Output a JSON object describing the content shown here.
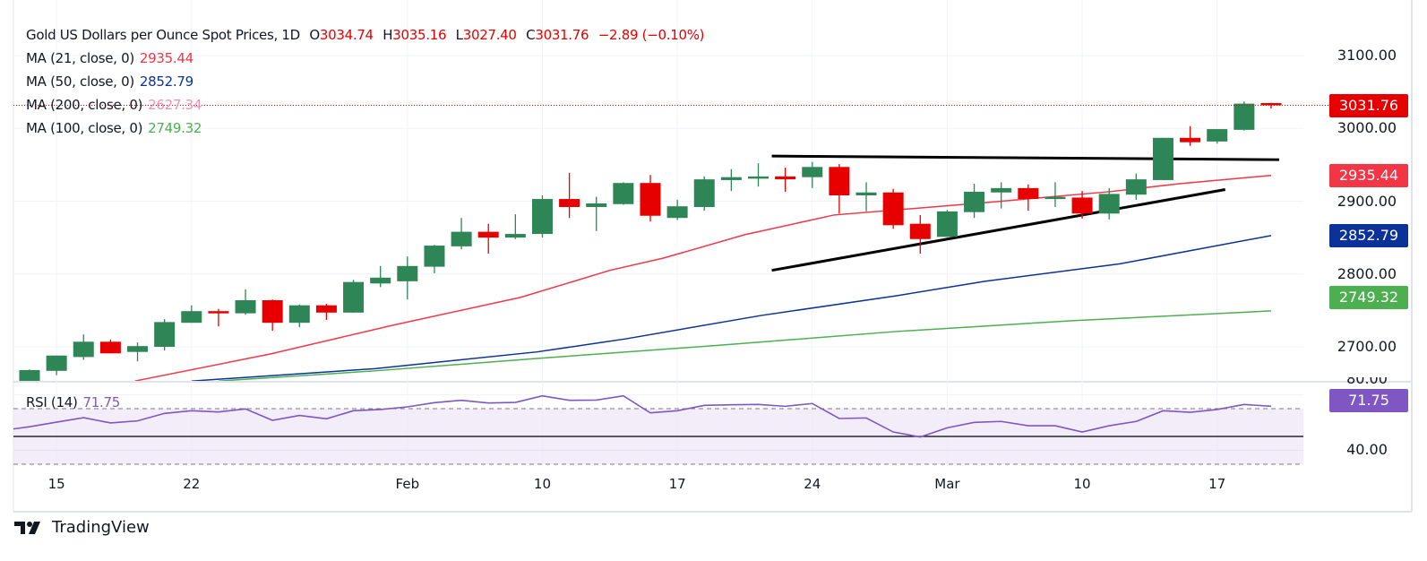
{
  "header": {
    "title": "Gold US Dollars per Ounce Spot Prices, 1D",
    "o_label": "O",
    "o_value": "3034.74",
    "h_label": "H",
    "h_value": "3035.16",
    "l_label": "L",
    "l_value": "3027.40",
    "c_label": "C",
    "c_value": "3031.76",
    "change": "−2.89 (−0.10%)"
  },
  "indicators": [
    {
      "label": "MA (21, close, 0)",
      "value": "2935.44",
      "color": "#f23645"
    },
    {
      "label": "MA (50, close, 0)",
      "value": "2852.79",
      "color": "#0c3299"
    },
    {
      "label": "MA (200, close, 0)",
      "value": "2627.34",
      "color": "#f48fb1"
    },
    {
      "label": "MA (100, close, 0)",
      "value": "2749.32",
      "color": "#4caf50"
    }
  ],
  "rsi": {
    "label": "RSI (14)",
    "value": "71.75",
    "color": "#7e57c2",
    "axis_labels": [
      "80.00",
      "40.00"
    ]
  },
  "badges": {
    "close": "3031.76",
    "ma21": "2935.44",
    "ma50": "2852.79",
    "ma100": "2749.32"
  },
  "colors": {
    "up": "#2e8656",
    "down": "#e60000",
    "ma21": "#f23645",
    "ma50": "#0c3299",
    "ma100": "#4caf50",
    "rsi": "#7e57c2"
  },
  "brand": "TradingView",
  "chart_data": {
    "type": "candlestick",
    "title": "Gold US Dollars per Ounce Spot Prices, 1D",
    "price_axis": {
      "ticks": [
        "3100.00",
        "3000.00",
        "2900.00",
        "2800.00",
        "2700.00"
      ],
      "tick_values": [
        3100,
        3000,
        2900,
        2800,
        2700
      ],
      "range": [
        2653,
        3145
      ]
    },
    "x_ticks": [
      {
        "label": "15",
        "index": 1
      },
      {
        "label": "22",
        "index": 6
      },
      {
        "label": "Feb",
        "index": 14
      },
      {
        "label": "10",
        "index": 19
      },
      {
        "label": "17",
        "index": 24
      },
      {
        "label": "24",
        "index": 29
      },
      {
        "label": "Mar",
        "index": 34
      },
      {
        "label": "10",
        "index": 39
      },
      {
        "label": "17",
        "index": 44
      }
    ],
    "ohlc": [
      [
        2652,
        2669,
        2651,
        2668
      ],
      [
        2667,
        2688,
        2661,
        2688
      ],
      [
        2686,
        2717,
        2682,
        2707
      ],
      [
        2707,
        2710,
        2691,
        2691
      ],
      [
        2693,
        2706,
        2680,
        2701
      ],
      [
        2700,
        2738,
        2695,
        2734
      ],
      [
        2733,
        2757,
        2733,
        2749
      ],
      [
        2749,
        2752,
        2728,
        2746
      ],
      [
        2746,
        2779,
        2744,
        2764
      ],
      [
        2764,
        2765,
        2722,
        2733
      ],
      [
        2733,
        2758,
        2727,
        2757
      ],
      [
        2757,
        2759,
        2737,
        2747
      ],
      [
        2747,
        2792,
        2747,
        2789
      ],
      [
        2787,
        2811,
        2782,
        2795
      ],
      [
        2790,
        2824,
        2765,
        2811
      ],
      [
        2810,
        2840,
        2801,
        2839
      ],
      [
        2838,
        2877,
        2834,
        2858
      ],
      [
        2858,
        2869,
        2828,
        2850
      ],
      [
        2850,
        2882,
        2848,
        2855
      ],
      [
        2855,
        2908,
        2850,
        2903
      ],
      [
        2903,
        2939,
        2877,
        2892
      ],
      [
        2892,
        2906,
        2859,
        2897
      ],
      [
        2896,
        2926,
        2895,
        2925
      ],
      [
        2925,
        2936,
        2872,
        2880
      ],
      [
        2877,
        2902,
        2874,
        2893
      ],
      [
        2892,
        2934,
        2887,
        2930
      ],
      [
        2929,
        2944,
        2914,
        2933
      ],
      [
        2931,
        2952,
        2920,
        2934
      ],
      [
        2934,
        2946,
        2913,
        2930
      ],
      [
        2933,
        2954,
        2918,
        2947
      ],
      [
        2947,
        2951,
        2883,
        2908
      ],
      [
        2908,
        2926,
        2886,
        2912
      ],
      [
        2912,
        2917,
        2862,
        2867
      ],
      [
        2869,
        2881,
        2828,
        2848
      ],
      [
        2851,
        2888,
        2851,
        2886
      ],
      [
        2885,
        2924,
        2877,
        2913
      ],
      [
        2912,
        2926,
        2890,
        2918
      ],
      [
        2918,
        2923,
        2887,
        2903
      ],
      [
        2904,
        2926,
        2892,
        2906
      ],
      [
        2905,
        2914,
        2876,
        2883
      ],
      [
        2883,
        2918,
        2875,
        2910
      ],
      [
        2909,
        2938,
        2902,
        2930
      ],
      [
        2929,
        2987,
        2929,
        2987
      ],
      [
        2987,
        3003,
        2976,
        2981
      ],
      [
        2982,
        2999,
        2979,
        2999
      ],
      [
        2998,
        3037,
        2997,
        3034
      ],
      [
        3034.74,
        3035.16,
        3027.4,
        3031.76
      ]
    ],
    "moving_averages": [
      {
        "name": "MA21",
        "points": [
          [
            3.9,
            2653
          ],
          [
            8.9,
            2690
          ],
          [
            13.5,
            2730
          ],
          [
            18.2,
            2768
          ],
          [
            21.5,
            2805
          ],
          [
            23.5,
            2822
          ],
          [
            26.5,
            2854
          ],
          [
            29.8,
            2881
          ],
          [
            35.4,
            2898
          ],
          [
            40,
            2913
          ],
          [
            42.6,
            2924
          ],
          [
            46,
            2935.44
          ]
        ]
      },
      {
        "name": "MA50",
        "points": [
          [
            6,
            2653
          ],
          [
            12.8,
            2670
          ],
          [
            18.8,
            2693
          ],
          [
            22.1,
            2711
          ],
          [
            27.1,
            2743
          ],
          [
            32.1,
            2770
          ],
          [
            35.4,
            2790
          ],
          [
            40.4,
            2814
          ],
          [
            46,
            2852.79
          ]
        ]
      },
      {
        "name": "MA100",
        "points": [
          [
            7,
            2653
          ],
          [
            12.8,
            2667
          ],
          [
            18.8,
            2684
          ],
          [
            25.5,
            2702
          ],
          [
            32.1,
            2721
          ],
          [
            38.7,
            2736
          ],
          [
            46,
            2749.32
          ]
        ]
      }
    ],
    "trendlines": [
      {
        "name": "upper",
        "from": [
          27.5,
          2962
        ],
        "to": [
          46.3,
          2957
        ]
      },
      {
        "name": "lower",
        "from": [
          27.5,
          2805
        ],
        "to": [
          44.3,
          2916
        ]
      }
    ],
    "rsi_values": [
      57,
      60.3,
      63.5,
      59.7,
      61.2,
      66.6,
      68.5,
      67.6,
      69.8,
      61.6,
      65.1,
      62.7,
      68.5,
      69.4,
      71.3,
      74.3,
      76,
      74.1,
      74.5,
      79.2,
      76,
      76.2,
      79.2,
      67,
      68.5,
      72.4,
      72.8,
      73,
      71.7,
      73.7,
      62.9,
      63.3,
      53.2,
      49.6,
      56.2,
      60.1,
      60.8,
      57.7,
      57.7,
      53.2,
      57.7,
      60.8,
      68.5,
      67.4,
      69.4,
      73,
      71.75
    ],
    "rsi_levels": [
      70,
      50,
      30
    ]
  }
}
